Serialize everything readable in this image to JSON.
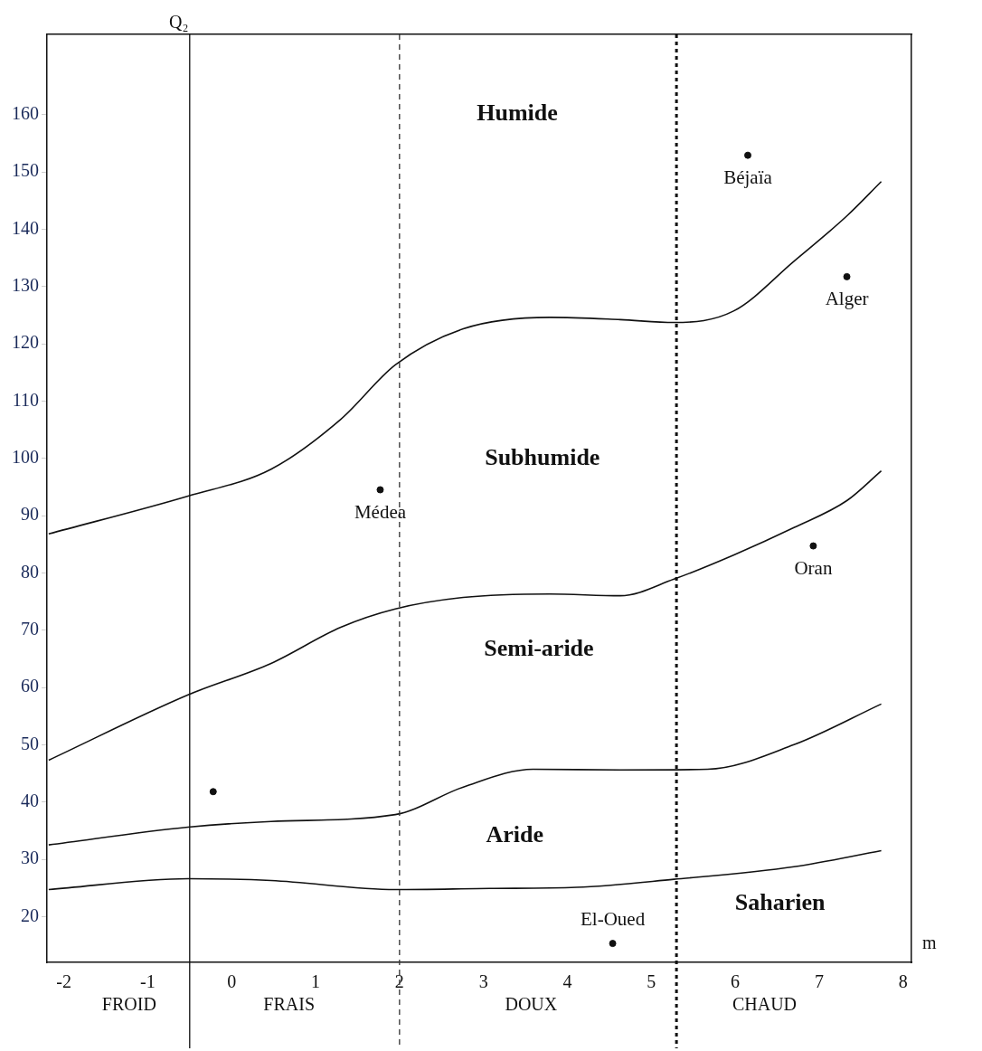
{
  "chart_data": {
    "type": "line",
    "xlabel": "m",
    "ylabel": "Q₂",
    "xlim": [
      -2.2,
      8.1
    ],
    "ylim": [
      12,
      174
    ],
    "xticks": [
      -2,
      -1,
      0,
      1,
      2,
      3,
      4,
      5,
      6,
      7,
      8
    ],
    "yticks": [
      20,
      30,
      40,
      50,
      60,
      70,
      80,
      90,
      100,
      110,
      120,
      130,
      140,
      150,
      160
    ],
    "grid": false,
    "legend": false,
    "series": [
      {
        "color": "#111111",
        "x": [
          -2.18,
          -0.52,
          0.47,
          1.3,
          1.95,
          2.76,
          3.79,
          4.63,
          5.27,
          5.98,
          6.7,
          7.33,
          7.74
        ],
        "values": [
          86.8,
          93.4,
          98.1,
          106.8,
          116.3,
          122.6,
          124.6,
          124.2,
          123.7,
          125.7,
          134.4,
          142.3,
          148.3
        ]
      },
      {
        "color": "#111111",
        "x": [
          -2.18,
          -0.52,
          0.47,
          1.3,
          1.95,
          2.76,
          3.79,
          4.63,
          5.27,
          5.98,
          6.7,
          7.33,
          7.74
        ],
        "values": [
          47.3,
          58.7,
          64.2,
          70.5,
          73.7,
          75.7,
          76.3,
          76,
          78.9,
          83.1,
          87.9,
          92.6,
          97.8
        ]
      },
      {
        "color": "#111111",
        "x": [
          -2.18,
          -0.52,
          0.47,
          1.95,
          2.76,
          3.59,
          4.63,
          5.67,
          6.7,
          7.74
        ],
        "values": [
          32.5,
          35.6,
          36.6,
          37.8,
          42.6,
          45.7,
          45.6,
          45.7,
          50,
          57.1
        ]
      },
      {
        "color": "#111111",
        "x": [
          -2.18,
          -0.52,
          0.47,
          1.95,
          3.07,
          4.11,
          5.27,
          6.7,
          7.74
        ],
        "values": [
          24.7,
          26.6,
          26.3,
          24.7,
          24.9,
          25.1,
          26.5,
          28.7,
          31.5
        ]
      },
      {
        "type": "scatter",
        "name": "Béjaïa",
        "color": "#111111",
        "marker": "circle",
        "x": [
          6.15
        ],
        "values": [
          152.9
        ]
      },
      {
        "type": "scatter",
        "name": "Alger",
        "color": "#111111",
        "marker": "circle",
        "x": [
          7.33
        ],
        "values": [
          131.7
        ]
      },
      {
        "type": "scatter",
        "name": "Médea",
        "color": "#111111",
        "marker": "circle",
        "x": [
          1.77
        ],
        "values": [
          94.5
        ]
      },
      {
        "type": "scatter",
        "name": "Oran",
        "color": "#111111",
        "marker": "circle",
        "x": [
          6.93
        ],
        "values": [
          84.7
        ]
      },
      {
        "type": "scatter",
        "color": "#111111",
        "marker": "circle",
        "x": [
          -0.22
        ],
        "values": [
          41.8
        ]
      },
      {
        "type": "scatter",
        "name": "El-Oued",
        "color": "#111111",
        "marker": "circle",
        "x": [
          4.54
        ],
        "values": [
          15.3
        ]
      }
    ],
    "ref_lines": [
      {
        "axis": "x",
        "value": -0.5,
        "line_style": "solid",
        "color": "#111111"
      },
      {
        "axis": "x",
        "value": 2,
        "line_style": "dashed",
        "color": "#333333"
      },
      {
        "axis": "x",
        "value": 5.3,
        "line_style": "dotted",
        "color": "#111111"
      }
    ],
    "annotations": [
      "Humide",
      "Subhumide",
      "Semi-aride",
      "Aride",
      "Saharien",
      "FROID",
      "FRAIS",
      "DOUX",
      "CHAUD"
    ]
  }
}
